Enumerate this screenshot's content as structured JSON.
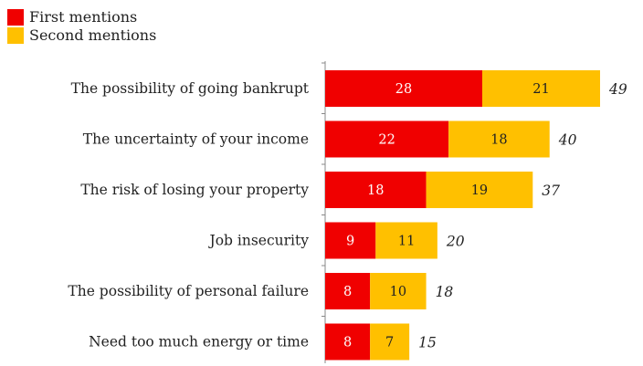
{
  "colors": {
    "first": "#f00000",
    "second": "#ffc000",
    "axis": "#888888"
  },
  "chart_data": {
    "type": "bar",
    "orientation": "horizontal",
    "stacked": true,
    "legend_position": "top-left",
    "grid": false,
    "xlim": [
      0,
      49
    ],
    "categories": [
      "The possibility of going bankrupt",
      "The uncertainty of your income",
      "The risk of losing your property",
      "Job insecurity",
      "The possibility of personal failure",
      "Need too much energy or time"
    ],
    "series": [
      {
        "name": "First mentions",
        "values": [
          28,
          22,
          18,
          9,
          8,
          8
        ]
      },
      {
        "name": "Second mentions",
        "values": [
          21,
          18,
          19,
          11,
          10,
          7
        ]
      }
    ],
    "totals": [
      49,
      40,
      37,
      20,
      18,
      15
    ]
  }
}
